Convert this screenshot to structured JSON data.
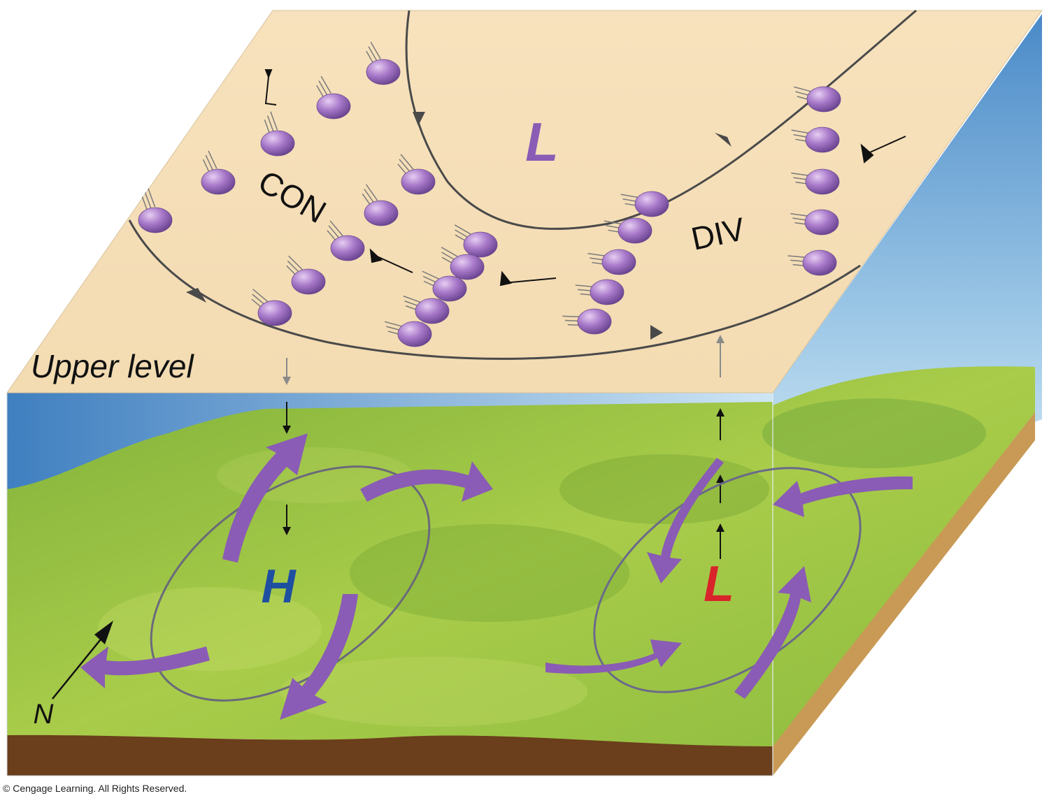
{
  "upper_level": {
    "label": "Upper level",
    "con_label": "CON",
    "div_label": "DIV",
    "low_label": "L"
  },
  "surface": {
    "high_label": "H",
    "low_label": "L",
    "north_label": "N"
  },
  "copyright": "© Cengage Learning. All Rights Reserved.",
  "colors": {
    "upper_plane": "#f5dfb8",
    "grass": "#8fbf3a",
    "sky": "#5a95cc",
    "soil": "#c79a55",
    "arrow_purple": "#8a5cb5",
    "high_blue": "#1f4fa0",
    "low_red": "#d8242a"
  }
}
